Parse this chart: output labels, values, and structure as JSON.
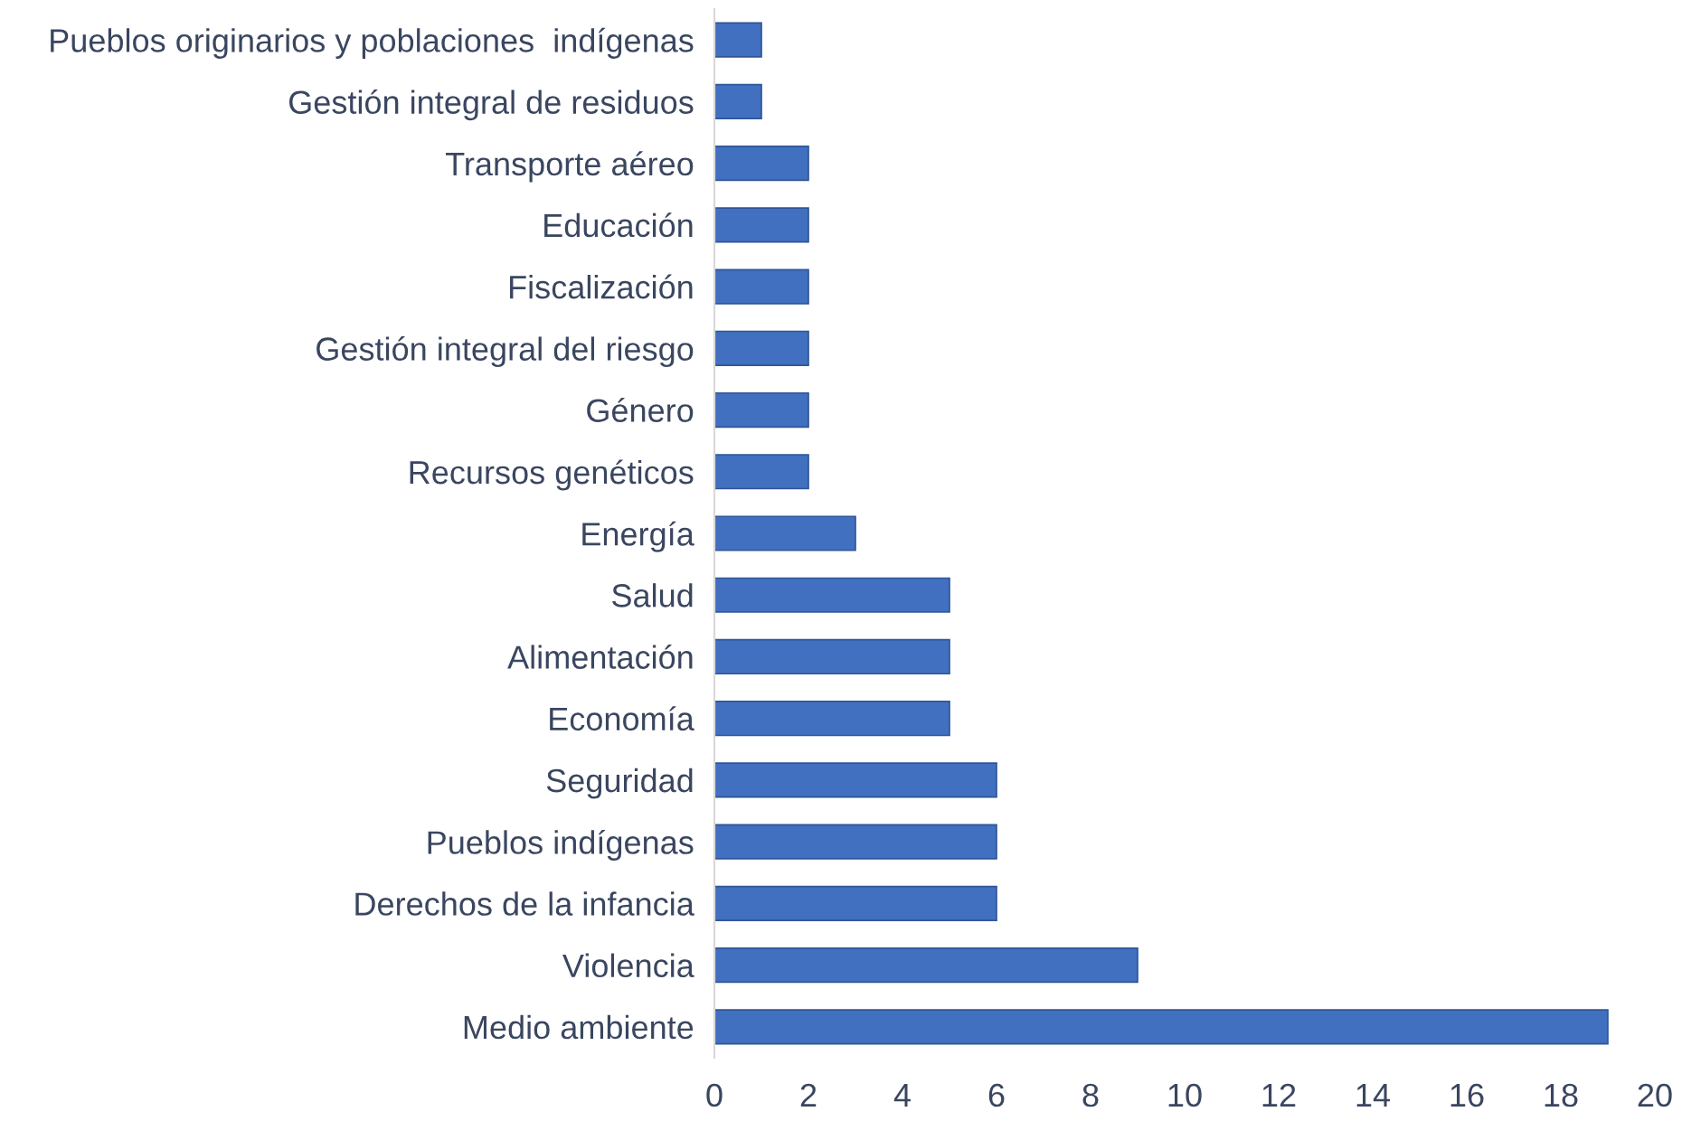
{
  "chart_data": {
    "type": "bar",
    "orientation": "horizontal",
    "categories": [
      "Pueblos originarios y poblaciones  indígenas",
      "Gestión integral de residuos",
      "Transporte aéreo",
      "Educación",
      "Fiscalización",
      "Gestión integral del riesgo",
      "Género",
      "Recursos genéticos",
      "Energía",
      "Salud",
      "Alimentación",
      "Economía",
      "Seguridad",
      "Pueblos indígenas",
      "Derechos de la infancia",
      "Violencia",
      "Medio ambiente"
    ],
    "values": [
      1,
      1,
      2,
      2,
      2,
      2,
      2,
      2,
      3,
      5,
      5,
      5,
      6,
      6,
      6,
      9,
      19
    ],
    "color": "#4170c0",
    "xlim": [
      0,
      20
    ],
    "xticks": [
      0,
      2,
      4,
      6,
      8,
      10,
      12,
      14,
      16,
      18,
      20
    ],
    "grid": false,
    "legend": false
  }
}
